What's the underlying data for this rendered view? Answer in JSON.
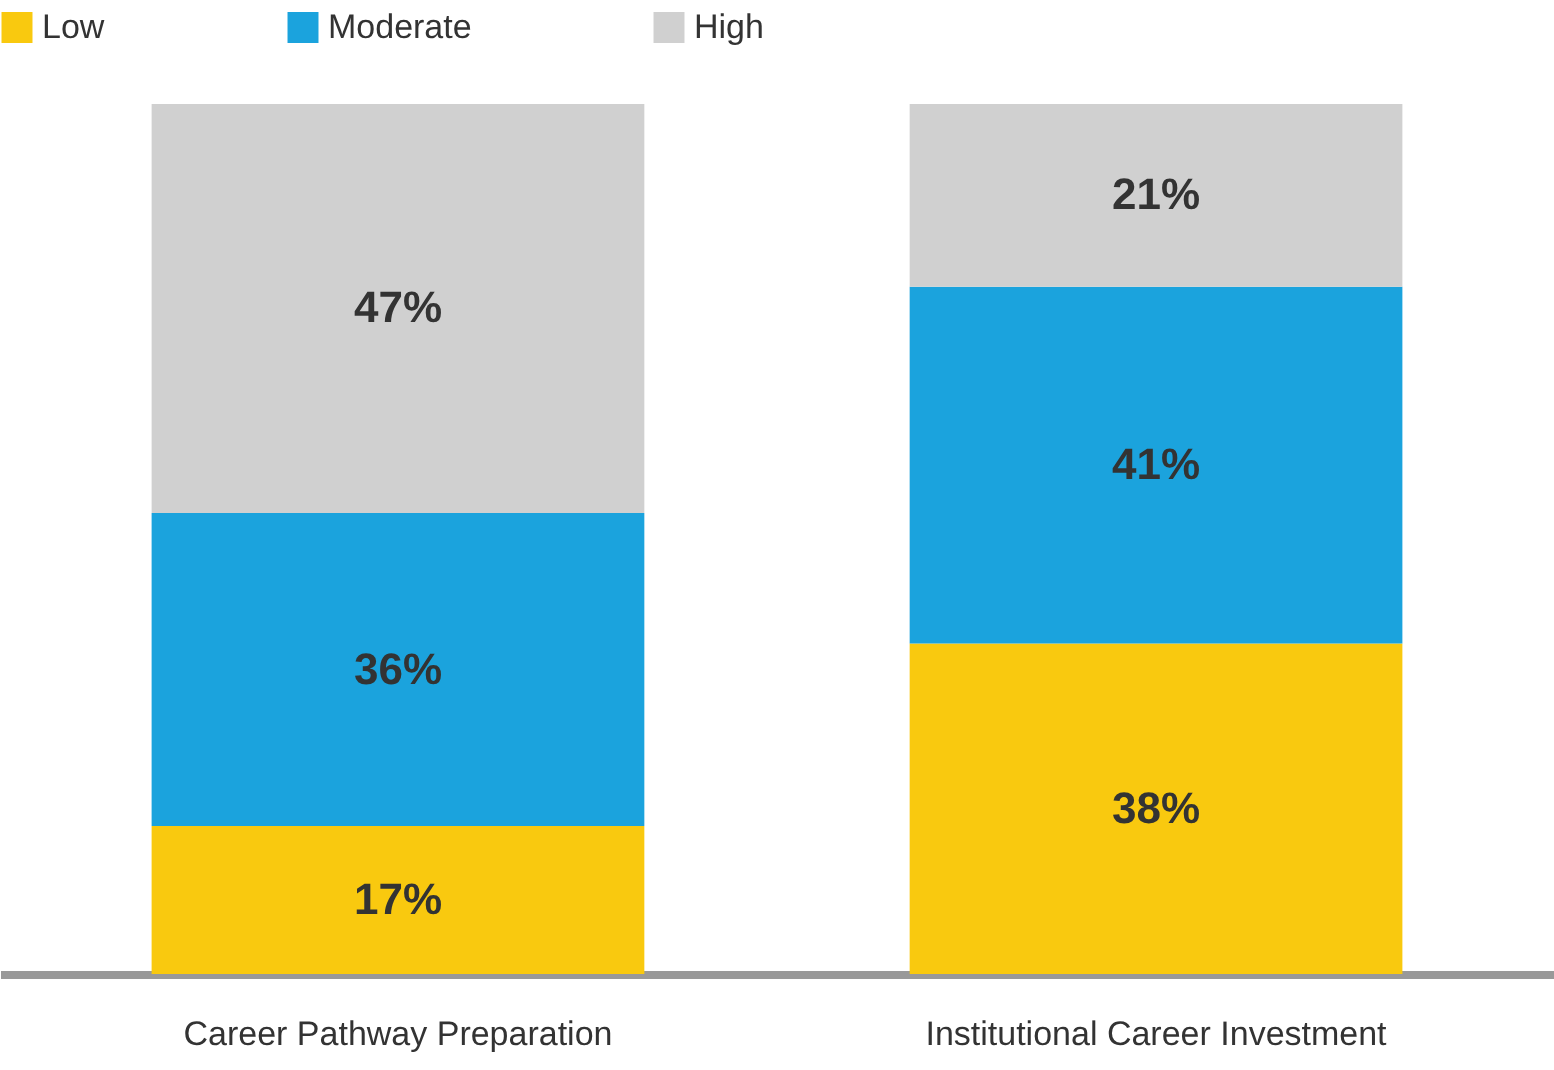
{
  "chart_data": {
    "type": "bar",
    "stacked": true,
    "legend": "top",
    "categories": [
      "Career Pathway Preparation",
      "Institutional Career Investment"
    ],
    "series": [
      {
        "name": "Low",
        "color": "#f9c90f",
        "values": [
          17,
          38
        ],
        "value_labels": [
          "17%",
          "38%"
        ]
      },
      {
        "name": "Moderate",
        "color": "#1ba3dd",
        "values": [
          36,
          41
        ],
        "value_labels": [
          "36%",
          "41%"
        ]
      },
      {
        "name": "High",
        "color": "#d0d0d0",
        "values": [
          47,
          21
        ],
        "value_labels": [
          "47%",
          "21%"
        ]
      }
    ]
  }
}
